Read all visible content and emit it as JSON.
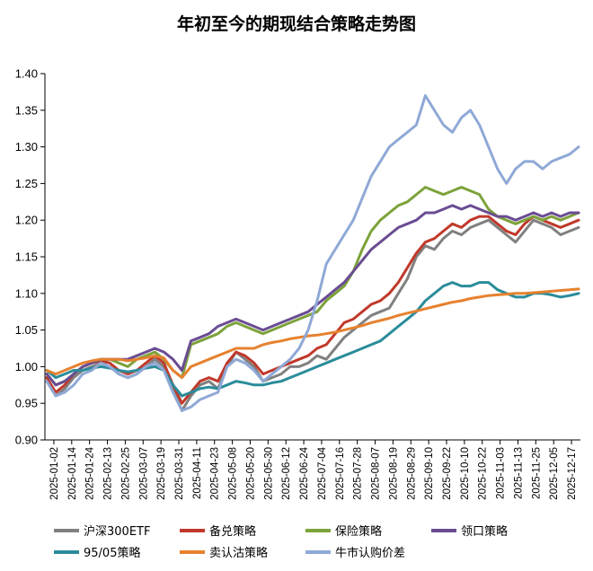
{
  "chart_data": {
    "type": "line",
    "title": "年初至今的期现结合策略走势图",
    "xlabel": "",
    "ylabel": "",
    "ylim": [
      0.9,
      1.4
    ],
    "y_ticks": [
      "0.90",
      "0.95",
      "1.00",
      "1.05",
      "1.10",
      "1.15",
      "1.20",
      "1.25",
      "1.30",
      "1.35",
      "1.40"
    ],
    "x_ticks": [
      "2025-01-02",
      "2025-01-14",
      "2025-01-24",
      "2025-02-13",
      "2025-02-25",
      "2025-03-07",
      "2025-03-19",
      "2025-03-31",
      "2025-04-11",
      "2025-04-23",
      "2025-05-08",
      "2025-05-20",
      "2025-05-30",
      "2025-06-12",
      "2025-06-24",
      "2025-07-04",
      "2025-07-16",
      "2025-07-28",
      "2025-08-07",
      "2025-08-19",
      "2025-08-29",
      "2025-09-10",
      "2025-09-22",
      "2025-10-10",
      "2025-10-22",
      "2025-11-03",
      "2025-11-13",
      "2025-11-25",
      "2025-12-05",
      "2025-12-17"
    ],
    "grid": false,
    "legend_position": "bottom",
    "series": [
      {
        "name": "沪深300ETF",
        "color": "#808080",
        "values": [
          0.985,
          0.96,
          0.97,
          0.985,
          0.995,
          1.0,
          1.005,
          1.0,
          0.99,
          0.985,
          0.99,
          1.0,
          1.01,
          1.0,
          0.97,
          0.94,
          0.96,
          0.975,
          0.98,
          0.97,
          1.0,
          1.02,
          1.01,
          1.0,
          0.98,
          0.985,
          0.99,
          1.0,
          1.0,
          1.005,
          1.015,
          1.01,
          1.025,
          1.04,
          1.05,
          1.06,
          1.07,
          1.075,
          1.08,
          1.1,
          1.12,
          1.15,
          1.165,
          1.16,
          1.175,
          1.185,
          1.18,
          1.19,
          1.195,
          1.2,
          1.19,
          1.18,
          1.17,
          1.185,
          1.2,
          1.195,
          1.19,
          1.18,
          1.185,
          1.19
        ]
      },
      {
        "name": "备兑策略",
        "color": "#C0392B",
        "values": [
          0.985,
          0.965,
          0.975,
          0.99,
          1.0,
          1.005,
          1.008,
          1.005,
          0.995,
          0.99,
          0.995,
          1.005,
          1.015,
          1.005,
          0.975,
          0.95,
          0.965,
          0.98,
          0.985,
          0.98,
          1.005,
          1.02,
          1.015,
          1.005,
          0.99,
          0.995,
          1.0,
          1.005,
          1.01,
          1.015,
          1.025,
          1.03,
          1.045,
          1.06,
          1.065,
          1.075,
          1.085,
          1.09,
          1.1,
          1.115,
          1.135,
          1.155,
          1.17,
          1.175,
          1.185,
          1.195,
          1.19,
          1.2,
          1.205,
          1.205,
          1.195,
          1.185,
          1.18,
          1.195,
          1.205,
          1.2,
          1.195,
          1.19,
          1.195,
          1.2
        ]
      },
      {
        "name": "保险策略",
        "color": "#7CA23A",
        "values": [
          0.99,
          0.975,
          0.98,
          0.99,
          1.0,
          1.005,
          1.01,
          1.01,
          1.005,
          1.0,
          1.01,
          1.015,
          1.02,
          1.01,
          0.995,
          0.985,
          1.03,
          1.035,
          1.04,
          1.045,
          1.055,
          1.06,
          1.055,
          1.05,
          1.045,
          1.05,
          1.055,
          1.06,
          1.065,
          1.07,
          1.075,
          1.09,
          1.1,
          1.11,
          1.13,
          1.16,
          1.185,
          1.2,
          1.21,
          1.22,
          1.225,
          1.235,
          1.245,
          1.24,
          1.235,
          1.24,
          1.245,
          1.24,
          1.235,
          1.215,
          1.205,
          1.2,
          1.195,
          1.2,
          1.205,
          1.2,
          1.205,
          1.2,
          1.205,
          1.21
        ]
      },
      {
        "name": "领口策略",
        "color": "#6A4C93",
        "values": [
          0.99,
          0.975,
          0.98,
          0.99,
          1.0,
          1.005,
          1.01,
          1.01,
          1.01,
          1.01,
          1.015,
          1.02,
          1.025,
          1.02,
          1.01,
          0.995,
          1.035,
          1.04,
          1.045,
          1.055,
          1.06,
          1.065,
          1.06,
          1.055,
          1.05,
          1.055,
          1.06,
          1.065,
          1.07,
          1.075,
          1.085,
          1.095,
          1.105,
          1.115,
          1.13,
          1.145,
          1.16,
          1.17,
          1.18,
          1.19,
          1.195,
          1.2,
          1.21,
          1.21,
          1.215,
          1.22,
          1.215,
          1.22,
          1.215,
          1.21,
          1.205,
          1.205,
          1.2,
          1.205,
          1.21,
          1.205,
          1.21,
          1.205,
          1.21,
          1.21
        ]
      },
      {
        "name": "95/05策略",
        "color": "#2A8C9A",
        "values": [
          0.995,
          0.985,
          0.99,
          0.995,
          0.995,
          0.998,
          1.0,
          0.998,
          0.995,
          0.993,
          0.995,
          0.998,
          1.0,
          0.995,
          0.975,
          0.96,
          0.965,
          0.97,
          0.972,
          0.97,
          0.975,
          0.98,
          0.978,
          0.975,
          0.975,
          0.978,
          0.98,
          0.985,
          0.99,
          0.995,
          1.0,
          1.005,
          1.01,
          1.015,
          1.02,
          1.025,
          1.03,
          1.035,
          1.045,
          1.055,
          1.065,
          1.075,
          1.09,
          1.1,
          1.11,
          1.115,
          1.11,
          1.11,
          1.115,
          1.115,
          1.105,
          1.1,
          1.095,
          1.095,
          1.1,
          1.1,
          1.098,
          1.095,
          1.097,
          1.1
        ]
      },
      {
        "name": "卖认沽策略",
        "color": "#E6812F",
        "values": [
          0.995,
          0.99,
          0.995,
          1.0,
          1.005,
          1.008,
          1.01,
          1.01,
          1.01,
          1.008,
          1.01,
          1.012,
          1.015,
          1.012,
          0.995,
          0.985,
          1.0,
          1.005,
          1.01,
          1.015,
          1.02,
          1.025,
          1.025,
          1.025,
          1.03,
          1.033,
          1.035,
          1.038,
          1.04,
          1.042,
          1.043,
          1.045,
          1.047,
          1.05,
          1.053,
          1.056,
          1.06,
          1.063,
          1.066,
          1.07,
          1.073,
          1.076,
          1.079,
          1.082,
          1.085,
          1.088,
          1.09,
          1.093,
          1.095,
          1.097,
          1.098,
          1.099,
          1.1,
          1.1,
          1.101,
          1.102,
          1.103,
          1.104,
          1.105,
          1.106
        ]
      },
      {
        "name": "牛市认购价差",
        "color": "#8FA9D6",
        "values": [
          0.98,
          0.96,
          0.965,
          0.975,
          0.99,
          0.995,
          1.005,
          1.0,
          0.99,
          0.985,
          0.99,
          1.0,
          1.005,
          0.995,
          0.965,
          0.94,
          0.945,
          0.955,
          0.96,
          0.965,
          1.0,
          1.01,
          1.005,
          0.995,
          0.98,
          0.99,
          1.0,
          1.01,
          1.025,
          1.05,
          1.09,
          1.14,
          1.16,
          1.18,
          1.2,
          1.23,
          1.26,
          1.28,
          1.3,
          1.31,
          1.32,
          1.33,
          1.37,
          1.35,
          1.33,
          1.32,
          1.34,
          1.35,
          1.33,
          1.3,
          1.27,
          1.25,
          1.27,
          1.28,
          1.28,
          1.27,
          1.28,
          1.285,
          1.29,
          1.3
        ]
      }
    ]
  }
}
